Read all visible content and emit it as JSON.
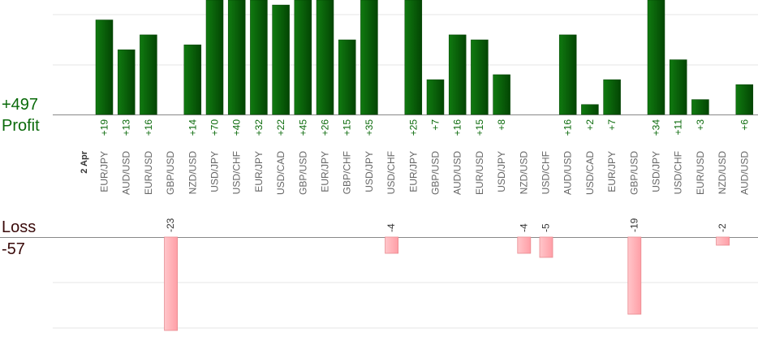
{
  "summary": {
    "profit_total": "+497",
    "profit_label": "Profit",
    "loss_label": "Loss",
    "loss_total": "-57"
  },
  "colors": {
    "profit_bar": "#0a6a0a",
    "profit_bar_dark": "#034003",
    "profit_text": "#0a6a0a",
    "loss_bar": "#ffb3b8",
    "loss_bar_border": "#e88a90",
    "loss_text": "#3a0a0a",
    "pair_text": "#666666",
    "date_text": "#333333",
    "grid": "#e6e6e6",
    "axis": "#888888"
  },
  "chart_data": {
    "type": "bar",
    "title": "",
    "date_label": "2 Apr",
    "categories": [
      "EUR/JPY",
      "AUD/USD",
      "EUR/USD",
      "GBP/USD",
      "NZD/USD",
      "USD/JPY",
      "USD/CHF",
      "EUR/JPY",
      "USD/CAD",
      "GBP/USD",
      "EUR/JPY",
      "GBP/CHF",
      "USD/JPY",
      "USD/CHF",
      "EUR/JPY",
      "GBP/USD",
      "AUD/USD",
      "EUR/USD",
      "USD/JPY",
      "NZD/USD",
      "USD/CHF",
      "AUD/USD",
      "USD/CAD",
      "EUR/JPY",
      "GBP/USD",
      "USD/JPY",
      "USD/CHF",
      "EUR/USD",
      "NZD/USD",
      "AUD/USD"
    ],
    "series": [
      {
        "name": "Profit",
        "values": [
          19,
          13,
          16,
          0,
          14,
          70,
          40,
          32,
          22,
          45,
          26,
          15,
          35,
          0,
          25,
          7,
          16,
          15,
          8,
          0,
          0,
          16,
          2,
          7,
          0,
          34,
          11,
          3,
          0,
          6
        ]
      },
      {
        "name": "Loss",
        "values": [
          0,
          0,
          0,
          -23,
          0,
          0,
          0,
          0,
          0,
          0,
          0,
          0,
          0,
          -4,
          0,
          0,
          0,
          0,
          0,
          -4,
          -5,
          0,
          0,
          0,
          -19,
          0,
          0,
          0,
          -2,
          0
        ]
      }
    ],
    "value_labels": [
      "+19",
      "+13",
      "+16",
      "-23",
      "+14",
      "+70",
      "+40",
      "+32",
      "+22",
      "+45",
      "+26",
      "+15",
      "+35",
      "-4",
      "+25",
      "+7",
      "+16",
      "+15",
      "+8",
      "-4",
      "-5",
      "+16",
      "+2",
      "+7",
      "-19",
      "+34",
      "+11",
      "+3",
      "-2",
      "+6"
    ],
    "profit_ylim": [
      0,
      23
    ],
    "loss_ylim": [
      -23,
      0
    ],
    "grid": true
  }
}
